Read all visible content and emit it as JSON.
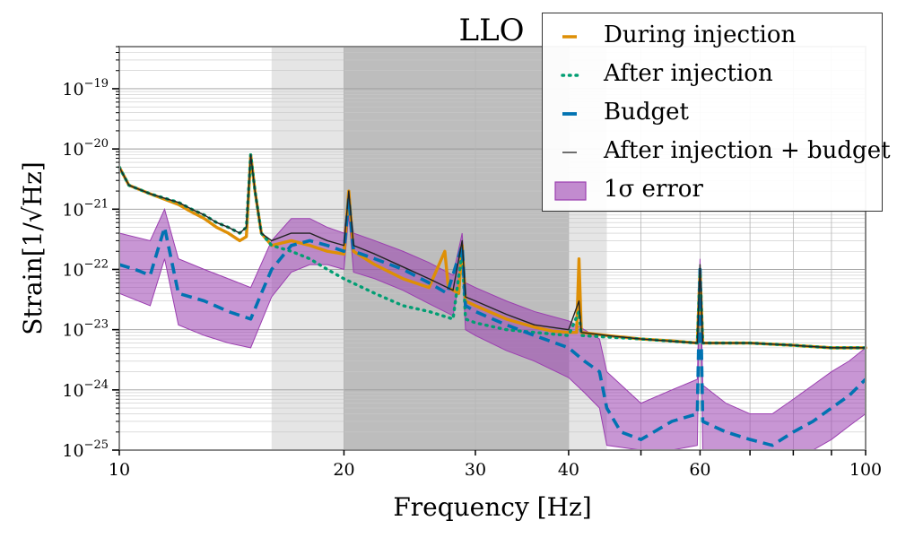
{
  "chart_data": {
    "type": "line",
    "title": "LLO",
    "xlabel": "Frequency [Hz]",
    "ylabel": "Strain[1/√Hz]",
    "xscale": "log",
    "yscale": "log",
    "xlim": [
      10,
      100
    ],
    "ylim": [
      1e-25,
      5e-19
    ],
    "x_ticks": [
      {
        "value": 10,
        "label": "10"
      },
      {
        "value": 20,
        "label": "20"
      },
      {
        "value": 30,
        "label": "30"
      },
      {
        "value": 40,
        "label": "40"
      },
      {
        "value": 60,
        "label": "60"
      },
      {
        "value": 100,
        "label": "100"
      }
    ],
    "y_ticks": [
      {
        "exp": -25,
        "base": "10",
        "sup": "−25"
      },
      {
        "exp": -24,
        "base": "10",
        "sup": "−24"
      },
      {
        "exp": -23,
        "base": "10",
        "sup": "−23"
      },
      {
        "exp": -22,
        "base": "10",
        "sup": "−22"
      },
      {
        "exp": -21,
        "base": "10",
        "sup": "−21"
      },
      {
        "exp": -20,
        "base": "10",
        "sup": "−20"
      },
      {
        "exp": -19,
        "base": "10",
        "sup": "−19"
      }
    ],
    "shaded_regions": [
      {
        "x0": 16,
        "x1": 45,
        "color": "#e5e5e5"
      },
      {
        "x0": 20,
        "x1": 40,
        "color": "#bdbdbd"
      }
    ],
    "legend": [
      {
        "label": "During injection",
        "style": "solid",
        "color": "#de8f05"
      },
      {
        "label": "After injection",
        "style": "dotted",
        "color": "#029e73"
      },
      {
        "label": "Budget",
        "style": "dashed",
        "color": "#0173b2"
      },
      {
        "label": "After injection + budget",
        "style": "thin",
        "color": "#222222"
      },
      {
        "label": "1σ error",
        "style": "fill",
        "color": "#9b3fb0"
      }
    ],
    "series": [
      {
        "name": "During injection",
        "color": "#de8f05",
        "points": [
          [
            10,
            5e-21
          ],
          [
            10.3,
            2.5e-21
          ],
          [
            11,
            1.8e-21
          ],
          [
            12,
            1.2e-21
          ],
          [
            12.5,
            9e-22
          ],
          [
            13,
            7e-22
          ],
          [
            13.5,
            5e-22
          ],
          [
            14,
            4e-22
          ],
          [
            14.5,
            3e-22
          ],
          [
            14.8,
            3.5e-22
          ],
          [
            15,
            8e-21
          ],
          [
            15.2,
            2e-21
          ],
          [
            15.5,
            4e-22
          ],
          [
            16,
            2.5e-22
          ],
          [
            17,
            3e-22
          ],
          [
            18,
            2.5e-22
          ],
          [
            19,
            2e-22
          ],
          [
            20,
            1.8e-22
          ],
          [
            20.3,
            2e-21
          ],
          [
            20.6,
            2e-22
          ],
          [
            22,
            1.2e-22
          ],
          [
            24,
            7e-23
          ],
          [
            26,
            5e-23
          ],
          [
            27.3,
            2e-22
          ],
          [
            27.6,
            5e-23
          ],
          [
            28.5,
            4e-23
          ],
          [
            28.8,
            2.5e-22
          ],
          [
            29.1,
            3e-23
          ],
          [
            30,
            2.5e-23
          ],
          [
            33,
            1.5e-23
          ],
          [
            36,
            1.1e-23
          ],
          [
            38,
            9.5e-24
          ],
          [
            40,
            9e-24
          ],
          [
            41,
            9e-24
          ],
          [
            41.3,
            1.5e-22
          ],
          [
            41.6,
            9e-24
          ],
          [
            45,
            8e-24
          ],
          [
            50,
            7e-24
          ],
          [
            55,
            6.5e-24
          ],
          [
            59.5,
            6e-24
          ],
          [
            60,
            1e-22
          ],
          [
            60.5,
            6e-24
          ],
          [
            70,
            6e-24
          ],
          [
            80,
            5.5e-24
          ],
          [
            90,
            5e-24
          ],
          [
            100,
            5e-24
          ]
        ]
      },
      {
        "name": "After injection",
        "color": "#029e73",
        "points": [
          [
            10,
            5e-21
          ],
          [
            10.3,
            2.5e-21
          ],
          [
            11,
            1.8e-21
          ],
          [
            12,
            1.3e-21
          ],
          [
            12.5,
            1e-21
          ],
          [
            13,
            8e-22
          ],
          [
            13.5,
            6e-22
          ],
          [
            14,
            5e-22
          ],
          [
            14.5,
            4e-22
          ],
          [
            14.8,
            5e-22
          ],
          [
            15,
            8e-21
          ],
          [
            15.2,
            2e-21
          ],
          [
            15.5,
            4e-22
          ],
          [
            16,
            2.5e-22
          ],
          [
            17,
            2e-22
          ],
          [
            18,
            1.5e-22
          ],
          [
            19,
            1e-22
          ],
          [
            20,
            7e-23
          ],
          [
            22,
            4e-23
          ],
          [
            24,
            2.5e-23
          ],
          [
            26,
            2e-23
          ],
          [
            28,
            1.5e-23
          ],
          [
            28.8,
            2e-22
          ],
          [
            29.1,
            1.5e-23
          ],
          [
            30,
            1.3e-23
          ],
          [
            33,
            1e-23
          ],
          [
            36,
            9e-24
          ],
          [
            40,
            8e-24
          ],
          [
            41.3,
            2e-23
          ],
          [
            41.6,
            8e-24
          ],
          [
            50,
            7e-24
          ],
          [
            59.5,
            6e-24
          ],
          [
            60,
            1e-22
          ],
          [
            60.5,
            6e-24
          ],
          [
            70,
            6e-24
          ],
          [
            80,
            5.5e-24
          ],
          [
            90,
            5e-24
          ],
          [
            100,
            5e-24
          ]
        ]
      },
      {
        "name": "Budget",
        "color": "#0173b2",
        "points": [
          [
            10,
            1.2e-22
          ],
          [
            10.5,
            1e-22
          ],
          [
            11,
            8e-23
          ],
          [
            11.5,
            5e-22
          ],
          [
            12,
            4e-23
          ],
          [
            13,
            3e-23
          ],
          [
            14,
            2e-23
          ],
          [
            15,
            1.5e-23
          ],
          [
            15.5,
            4e-23
          ],
          [
            16,
            1e-22
          ],
          [
            17,
            2.5e-22
          ],
          [
            18,
            3e-22
          ],
          [
            19,
            2.5e-22
          ],
          [
            20,
            2e-22
          ],
          [
            20.3,
            1.5e-21
          ],
          [
            20.6,
            2e-22
          ],
          [
            22,
            1.5e-22
          ],
          [
            24,
            1e-22
          ],
          [
            26,
            6e-23
          ],
          [
            27.5,
            4e-23
          ],
          [
            28.8,
            2.5e-22
          ],
          [
            29.1,
            2.5e-23
          ],
          [
            30,
            2e-23
          ],
          [
            33,
            1.2e-23
          ],
          [
            36,
            8e-24
          ],
          [
            40,
            5e-24
          ],
          [
            42,
            3e-24
          ],
          [
            44,
            2e-24
          ],
          [
            45,
            5e-25
          ],
          [
            47,
            2e-25
          ],
          [
            50,
            1.5e-25
          ],
          [
            55,
            3e-25
          ],
          [
            59.5,
            4e-25
          ],
          [
            60,
            1e-22
          ],
          [
            60.5,
            3e-25
          ],
          [
            65,
            2e-25
          ],
          [
            70,
            1.5e-25
          ],
          [
            75,
            1.2e-25
          ],
          [
            80,
            2e-25
          ],
          [
            85,
            3e-25
          ],
          [
            90,
            5e-25
          ],
          [
            95,
            8e-25
          ],
          [
            100,
            1.5e-24
          ]
        ]
      },
      {
        "name": "After injection + budget",
        "color": "#222222",
        "points": [
          [
            10,
            5e-21
          ],
          [
            10.3,
            2.5e-21
          ],
          [
            11,
            1.8e-21
          ],
          [
            12,
            1.3e-21
          ],
          [
            12.5,
            1e-21
          ],
          [
            13,
            8e-22
          ],
          [
            13.5,
            6e-22
          ],
          [
            14,
            5e-22
          ],
          [
            14.5,
            4e-22
          ],
          [
            14.8,
            5e-22
          ],
          [
            15,
            8e-21
          ],
          [
            15.2,
            2e-21
          ],
          [
            15.5,
            4e-22
          ],
          [
            16,
            3e-22
          ],
          [
            17,
            4e-22
          ],
          [
            18,
            4e-22
          ],
          [
            19,
            3e-22
          ],
          [
            20,
            2.5e-22
          ],
          [
            20.3,
            2e-21
          ],
          [
            20.6,
            2.5e-22
          ],
          [
            22,
            1.8e-22
          ],
          [
            24,
            1.1e-22
          ],
          [
            26,
            7e-23
          ],
          [
            28,
            4.5e-23
          ],
          [
            28.8,
            3e-22
          ],
          [
            29.1,
            3.5e-23
          ],
          [
            30,
            3e-23
          ],
          [
            33,
            1.8e-23
          ],
          [
            36,
            1.2e-23
          ],
          [
            40,
            1e-23
          ],
          [
            41.3,
            3e-23
          ],
          [
            41.6,
            9e-24
          ],
          [
            45,
            8e-24
          ],
          [
            50,
            7e-24
          ],
          [
            59.5,
            6e-24
          ],
          [
            60,
            1.2e-22
          ],
          [
            60.5,
            6e-24
          ],
          [
            70,
            6e-24
          ],
          [
            80,
            5.5e-24
          ],
          [
            90,
            5e-24
          ],
          [
            100,
            5e-24
          ]
        ]
      }
    ],
    "error_band": {
      "name": "1σ error",
      "color": "#9b3fb0",
      "upper": [
        [
          10,
          4e-22
        ],
        [
          11,
          3e-22
        ],
        [
          11.5,
          1e-21
        ],
        [
          12,
          1.5e-22
        ],
        [
          13,
          1e-22
        ],
        [
          14,
          7e-23
        ],
        [
          15,
          5e-23
        ],
        [
          16,
          3e-22
        ],
        [
          17,
          7e-22
        ],
        [
          18,
          7e-22
        ],
        [
          19,
          5e-22
        ],
        [
          20,
          4e-22
        ],
        [
          20.3,
          2e-21
        ],
        [
          20.6,
          4e-22
        ],
        [
          22,
          3e-22
        ],
        [
          24,
          2e-22
        ],
        [
          26,
          1.3e-22
        ],
        [
          28,
          8e-23
        ],
        [
          28.8,
          4e-22
        ],
        [
          29.1,
          6e-23
        ],
        [
          30,
          5e-23
        ],
        [
          33,
          3e-23
        ],
        [
          36,
          2e-23
        ],
        [
          40,
          1.4e-23
        ],
        [
          42,
          1e-23
        ],
        [
          44,
          7e-24
        ],
        [
          45,
          2e-24
        ],
        [
          50,
          6e-25
        ],
        [
          55,
          1e-24
        ],
        [
          59.5,
          1.5e-24
        ],
        [
          60,
          1.5e-22
        ],
        [
          60.5,
          1.2e-24
        ],
        [
          65,
          6e-25
        ],
        [
          70,
          4e-25
        ],
        [
          75,
          4e-25
        ],
        [
          80,
          7e-25
        ],
        [
          85,
          1.2e-24
        ],
        [
          90,
          2e-24
        ],
        [
          95,
          3e-24
        ],
        [
          100,
          5e-24
        ]
      ],
      "lower": [
        [
          10,
          4e-23
        ],
        [
          11,
          2.5e-23
        ],
        [
          11.5,
          1.5e-22
        ],
        [
          12,
          1.2e-23
        ],
        [
          13,
          8e-24
        ],
        [
          14,
          6e-24
        ],
        [
          15,
          5e-24
        ],
        [
          16,
          3.5e-23
        ],
        [
          17,
          9e-23
        ],
        [
          18,
          1.2e-22
        ],
        [
          19,
          1.2e-22
        ],
        [
          20,
          1e-22
        ],
        [
          20.3,
          8e-22
        ],
        [
          20.6,
          9e-23
        ],
        [
          22,
          7e-23
        ],
        [
          24,
          4.5e-23
        ],
        [
          26,
          2.7e-23
        ],
        [
          28,
          1.7e-23
        ],
        [
          28.8,
          1.2e-22
        ],
        [
          29.1,
          1e-23
        ],
        [
          30,
          8e-24
        ],
        [
          33,
          4.5e-24
        ],
        [
          36,
          3e-24
        ],
        [
          40,
          1.6e-24
        ],
        [
          42,
          9e-25
        ],
        [
          44,
          5e-25
        ],
        [
          45,
          1.2e-25
        ],
        [
          50,
          1e-25
        ],
        [
          55,
          1e-25
        ],
        [
          59.5,
          1.2e-25
        ],
        [
          60,
          7e-23
        ],
        [
          60.5,
          1e-25
        ],
        [
          65,
          1e-25
        ],
        [
          70,
          1e-25
        ],
        [
          75,
          1e-25
        ],
        [
          80,
          1e-25
        ],
        [
          85,
          1e-25
        ],
        [
          90,
          1.5e-25
        ],
        [
          95,
          2.5e-25
        ],
        [
          100,
          4e-25
        ]
      ]
    }
  }
}
